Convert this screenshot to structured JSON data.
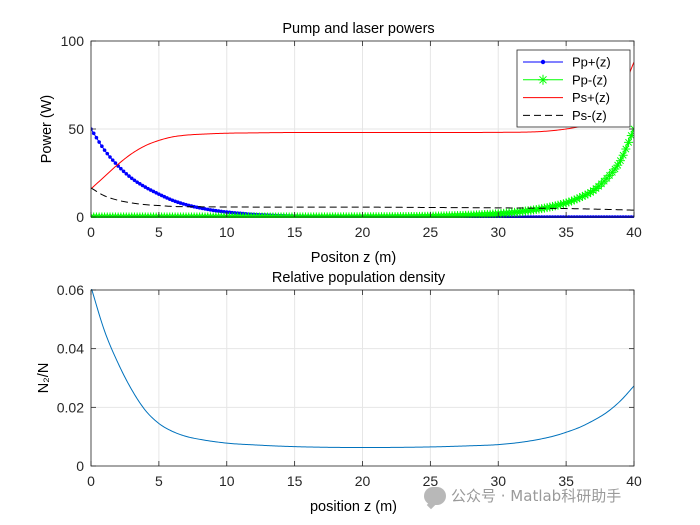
{
  "chart_data": [
    {
      "type": "line",
      "title": "Pump and laser powers",
      "xlabel": "Positon z (m)",
      "ylabel": "Power (W)",
      "xlim": [
        0,
        40
      ],
      "ylim": [
        0,
        100
      ],
      "xticks": [
        "0",
        "5",
        "10",
        "15",
        "20",
        "25",
        "30",
        "35",
        "40"
      ],
      "yticks": [
        "0",
        "50",
        "100"
      ],
      "grid": true,
      "legend": "top-right",
      "series": [
        {
          "name": "Pp+(z)",
          "color": "#0000ff",
          "style": "solid-dot",
          "x": [
            0,
            1,
            2,
            3,
            4,
            5,
            6,
            7,
            8,
            9,
            10,
            12,
            14,
            16,
            18,
            20,
            25,
            30,
            35,
            40
          ],
          "y": [
            50,
            38,
            29,
            22,
            17,
            13,
            9.5,
            7,
            5.2,
            3.8,
            2.8,
            1.5,
            0.8,
            0.4,
            0.2,
            0.1,
            0.03,
            0.01,
            0,
            0
          ]
        },
        {
          "name": "Pp-(z)",
          "color": "#00ff00",
          "style": "solid-star",
          "x": [
            0,
            5,
            10,
            15,
            20,
            24,
            27,
            29,
            31,
            33,
            34,
            35,
            36,
            37,
            38,
            39,
            40
          ],
          "y": [
            0,
            0,
            0,
            0.02,
            0.1,
            0.3,
            0.8,
            1.4,
            2.5,
            4.5,
            6,
            8,
            11,
            15,
            22,
            32,
            50
          ]
        },
        {
          "name": "Ps+(z)",
          "color": "#ff0000",
          "style": "solid",
          "x": [
            0,
            1,
            2,
            3,
            4,
            5,
            6,
            7,
            8,
            10,
            12,
            15,
            20,
            25,
            30,
            33,
            35,
            36,
            37,
            38,
            39,
            40
          ],
          "y": [
            16,
            23,
            30,
            36,
            40.5,
            43.5,
            45.5,
            46.5,
            47,
            47.6,
            47.8,
            48,
            48,
            48,
            48.1,
            48.5,
            50,
            51.5,
            54.5,
            60,
            70,
            88
          ]
        },
        {
          "name": "Ps-(z)",
          "color": "#000000",
          "style": "dashed",
          "x": [
            0,
            1,
            2,
            3,
            4,
            5,
            6,
            8,
            10,
            15,
            20,
            25,
            30,
            35,
            38,
            40
          ],
          "y": [
            16.5,
            12,
            9.5,
            8,
            7,
            6.5,
            6,
            5.8,
            5.7,
            5.6,
            5.6,
            5.4,
            5.2,
            4.8,
            4.3,
            3.9
          ]
        }
      ]
    },
    {
      "type": "line",
      "title": "Relative population density",
      "xlabel": "position z (m)",
      "ylabel": "N₂/N",
      "xlim": [
        0,
        40
      ],
      "ylim": [
        0,
        0.06
      ],
      "xticks": [
        "0",
        "5",
        "10",
        "15",
        "20",
        "25",
        "30",
        "35",
        "40"
      ],
      "yticks": [
        "0",
        "0.02",
        "0.04",
        "0.06"
      ],
      "grid": true,
      "series": [
        {
          "color": "#0072bd",
          "x": [
            0,
            1,
            2,
            3,
            4,
            5,
            6,
            7,
            8,
            10,
            12,
            15,
            20,
            25,
            28,
            30,
            32,
            34,
            35,
            36,
            37,
            38,
            39,
            40
          ],
          "y": [
            0.061,
            0.046,
            0.035,
            0.026,
            0.019,
            0.0145,
            0.0118,
            0.0101,
            0.0091,
            0.0078,
            0.0072,
            0.0066,
            0.0063,
            0.0065,
            0.0069,
            0.0073,
            0.0083,
            0.0101,
            0.0115,
            0.0132,
            0.0155,
            0.0183,
            0.0222,
            0.0273
          ]
        }
      ]
    }
  ],
  "watermark": {
    "text": "公众号 · Matlab科研助手",
    "icon": "wechat-icon"
  }
}
